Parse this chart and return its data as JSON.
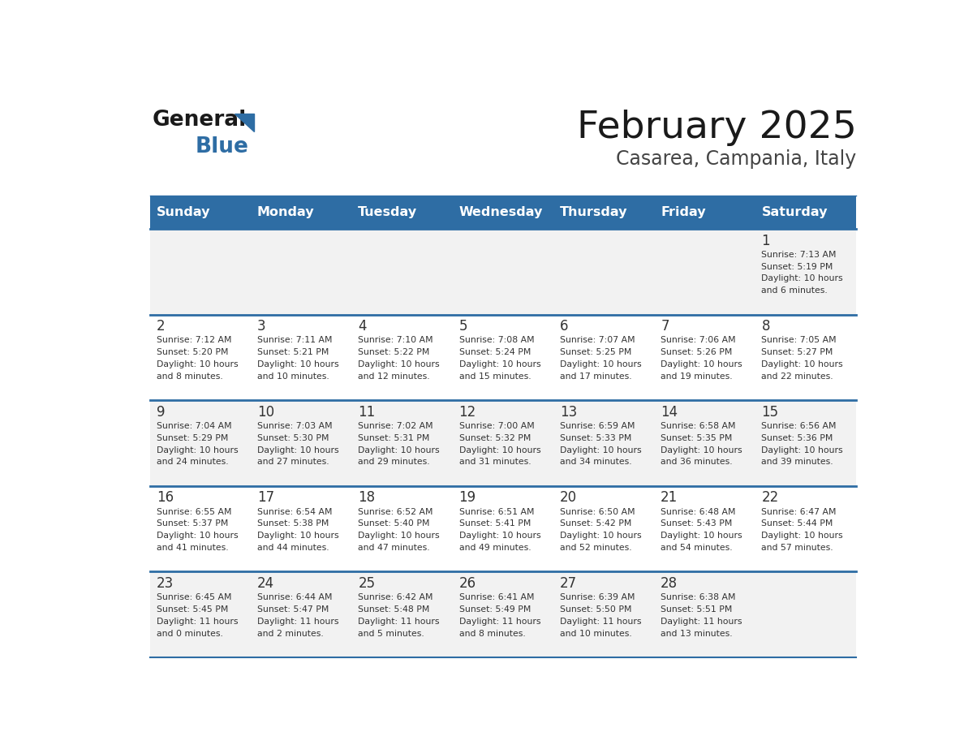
{
  "title": "February 2025",
  "subtitle": "Casarea, Campania, Italy",
  "header_bg": "#2E6DA4",
  "header_text": "#FFFFFF",
  "row_bg_even": "#F2F2F2",
  "row_bg_odd": "#FFFFFF",
  "separator_color": "#2E6DA4",
  "text_color": "#333333",
  "days_of_week": [
    "Sunday",
    "Monday",
    "Tuesday",
    "Wednesday",
    "Thursday",
    "Friday",
    "Saturday"
  ],
  "calendar": [
    [
      {
        "day": "",
        "info": ""
      },
      {
        "day": "",
        "info": ""
      },
      {
        "day": "",
        "info": ""
      },
      {
        "day": "",
        "info": ""
      },
      {
        "day": "",
        "info": ""
      },
      {
        "day": "",
        "info": ""
      },
      {
        "day": "1",
        "info": "Sunrise: 7:13 AM\nSunset: 5:19 PM\nDaylight: 10 hours\nand 6 minutes."
      }
    ],
    [
      {
        "day": "2",
        "info": "Sunrise: 7:12 AM\nSunset: 5:20 PM\nDaylight: 10 hours\nand 8 minutes."
      },
      {
        "day": "3",
        "info": "Sunrise: 7:11 AM\nSunset: 5:21 PM\nDaylight: 10 hours\nand 10 minutes."
      },
      {
        "day": "4",
        "info": "Sunrise: 7:10 AM\nSunset: 5:22 PM\nDaylight: 10 hours\nand 12 minutes."
      },
      {
        "day": "5",
        "info": "Sunrise: 7:08 AM\nSunset: 5:24 PM\nDaylight: 10 hours\nand 15 minutes."
      },
      {
        "day": "6",
        "info": "Sunrise: 7:07 AM\nSunset: 5:25 PM\nDaylight: 10 hours\nand 17 minutes."
      },
      {
        "day": "7",
        "info": "Sunrise: 7:06 AM\nSunset: 5:26 PM\nDaylight: 10 hours\nand 19 minutes."
      },
      {
        "day": "8",
        "info": "Sunrise: 7:05 AM\nSunset: 5:27 PM\nDaylight: 10 hours\nand 22 minutes."
      }
    ],
    [
      {
        "day": "9",
        "info": "Sunrise: 7:04 AM\nSunset: 5:29 PM\nDaylight: 10 hours\nand 24 minutes."
      },
      {
        "day": "10",
        "info": "Sunrise: 7:03 AM\nSunset: 5:30 PM\nDaylight: 10 hours\nand 27 minutes."
      },
      {
        "day": "11",
        "info": "Sunrise: 7:02 AM\nSunset: 5:31 PM\nDaylight: 10 hours\nand 29 minutes."
      },
      {
        "day": "12",
        "info": "Sunrise: 7:00 AM\nSunset: 5:32 PM\nDaylight: 10 hours\nand 31 minutes."
      },
      {
        "day": "13",
        "info": "Sunrise: 6:59 AM\nSunset: 5:33 PM\nDaylight: 10 hours\nand 34 minutes."
      },
      {
        "day": "14",
        "info": "Sunrise: 6:58 AM\nSunset: 5:35 PM\nDaylight: 10 hours\nand 36 minutes."
      },
      {
        "day": "15",
        "info": "Sunrise: 6:56 AM\nSunset: 5:36 PM\nDaylight: 10 hours\nand 39 minutes."
      }
    ],
    [
      {
        "day": "16",
        "info": "Sunrise: 6:55 AM\nSunset: 5:37 PM\nDaylight: 10 hours\nand 41 minutes."
      },
      {
        "day": "17",
        "info": "Sunrise: 6:54 AM\nSunset: 5:38 PM\nDaylight: 10 hours\nand 44 minutes."
      },
      {
        "day": "18",
        "info": "Sunrise: 6:52 AM\nSunset: 5:40 PM\nDaylight: 10 hours\nand 47 minutes."
      },
      {
        "day": "19",
        "info": "Sunrise: 6:51 AM\nSunset: 5:41 PM\nDaylight: 10 hours\nand 49 minutes."
      },
      {
        "day": "20",
        "info": "Sunrise: 6:50 AM\nSunset: 5:42 PM\nDaylight: 10 hours\nand 52 minutes."
      },
      {
        "day": "21",
        "info": "Sunrise: 6:48 AM\nSunset: 5:43 PM\nDaylight: 10 hours\nand 54 minutes."
      },
      {
        "day": "22",
        "info": "Sunrise: 6:47 AM\nSunset: 5:44 PM\nDaylight: 10 hours\nand 57 minutes."
      }
    ],
    [
      {
        "day": "23",
        "info": "Sunrise: 6:45 AM\nSunset: 5:45 PM\nDaylight: 11 hours\nand 0 minutes."
      },
      {
        "day": "24",
        "info": "Sunrise: 6:44 AM\nSunset: 5:47 PM\nDaylight: 11 hours\nand 2 minutes."
      },
      {
        "day": "25",
        "info": "Sunrise: 6:42 AM\nSunset: 5:48 PM\nDaylight: 11 hours\nand 5 minutes."
      },
      {
        "day": "26",
        "info": "Sunrise: 6:41 AM\nSunset: 5:49 PM\nDaylight: 11 hours\nand 8 minutes."
      },
      {
        "day": "27",
        "info": "Sunrise: 6:39 AM\nSunset: 5:50 PM\nDaylight: 11 hours\nand 10 minutes."
      },
      {
        "day": "28",
        "info": "Sunrise: 6:38 AM\nSunset: 5:51 PM\nDaylight: 11 hours\nand 13 minutes."
      },
      {
        "day": "",
        "info": ""
      }
    ]
  ]
}
